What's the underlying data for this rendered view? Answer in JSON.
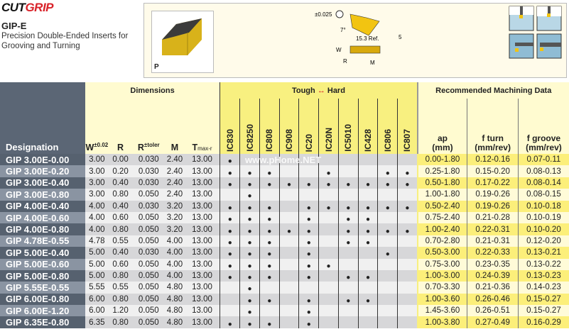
{
  "brand": {
    "logo_part1": "CUT",
    "logo_part2": "GRIP"
  },
  "product": {
    "title": "GIP-E",
    "subtitle": "Precision Double-Ended Inserts for Grooving and Turning",
    "photo_label": "P"
  },
  "diagram": {
    "tolerance": "±0.025",
    "angle": "7°",
    "ref_length": "15.3 Ref.",
    "height": "5",
    "w_label": "W",
    "r_label": "R",
    "m_label": "M"
  },
  "watermark": "www.pHome.NET",
  "table": {
    "designation_header": "Designation",
    "dimensions_header": "Dimensions",
    "dim_cols": [
      {
        "main": "W",
        "sup": "±0.02"
      },
      {
        "main": "R",
        "sup": ""
      },
      {
        "main": "R",
        "sup": "±toler"
      },
      {
        "main": "M",
        "sup": ""
      },
      {
        "main": "T",
        "sub": "max-r"
      }
    ],
    "grades_header": {
      "left": "Tough",
      "arrow": "↔",
      "right": "Hard",
      "arrow_color": "#d9232a"
    },
    "grades": [
      "IC830",
      "IC8250",
      "IC808",
      "IC908",
      "IC20",
      "IC20N",
      "IC5010",
      "IC428",
      "IC806",
      "IC807"
    ],
    "machining_header": "Recommended  Machining Data",
    "mach_cols": [
      {
        "l1": "ap",
        "l2": "(mm)"
      },
      {
        "l1": "f turn",
        "l2": "(mm/rev)"
      },
      {
        "l1": "f groove",
        "l2": "(mm/rev)"
      }
    ],
    "rows": [
      {
        "d": "GIP 3.00E-0.00",
        "dims": [
          "3.00",
          "0.00",
          "0.030",
          "2.40",
          "13.00"
        ],
        "g": [
          "IC830"
        ],
        "m": [
          "0.00-1.80",
          "0.12-0.16",
          "0.07-0.11"
        ]
      },
      {
        "d": "GIP 3.00E-0.20",
        "dims": [
          "3.00",
          "0.20",
          "0.030",
          "2.40",
          "13.00"
        ],
        "g": [
          "IC830",
          "IC8250",
          "IC808",
          "IC20N",
          "IC806",
          "IC807"
        ],
        "m": [
          "0.25-1.80",
          "0.15-0.20",
          "0.08-0.13"
        ]
      },
      {
        "d": "GIP 3.00E-0.40",
        "dims": [
          "3.00",
          "0.40",
          "0.030",
          "2.40",
          "13.00"
        ],
        "g": [
          "IC830",
          "IC8250",
          "IC808",
          "IC908",
          "IC20",
          "IC20N",
          "IC5010",
          "IC428",
          "IC806",
          "IC807"
        ],
        "m": [
          "0.50-1.80",
          "0.17-0.22",
          "0.08-0.14"
        ]
      },
      {
        "d": "GIP 3.00E-0.80",
        "dims": [
          "3.00",
          "0.80",
          "0.050",
          "2.40",
          "13.00"
        ],
        "g": [
          "IC8250"
        ],
        "m": [
          "1.00-1.80",
          "0.19-0.26",
          "0.08-0.15"
        ]
      },
      {
        "d": "GIP 4.00E-0.40",
        "dims": [
          "4.00",
          "0.40",
          "0.030",
          "3.20",
          "13.00"
        ],
        "g": [
          "IC830",
          "IC8250",
          "IC808",
          "IC20",
          "IC20N",
          "IC5010",
          "IC428",
          "IC806",
          "IC807"
        ],
        "m": [
          "0.50-2.40",
          "0.19-0.26",
          "0.10-0.18"
        ]
      },
      {
        "d": "GIP 4.00E-0.60",
        "dims": [
          "4.00",
          "0.60",
          "0.050",
          "3.20",
          "13.00"
        ],
        "g": [
          "IC830",
          "IC8250",
          "IC808",
          "IC20",
          "IC5010",
          "IC428"
        ],
        "m": [
          "0.75-2.40",
          "0.21-0.28",
          "0.10-0.19"
        ]
      },
      {
        "d": "GIP 4.00E-0.80",
        "dims": [
          "4.00",
          "0.80",
          "0.050",
          "3.20",
          "13.00"
        ],
        "g": [
          "IC830",
          "IC8250",
          "IC808",
          "IC908",
          "IC20",
          "IC5010",
          "IC428",
          "IC806",
          "IC807"
        ],
        "m": [
          "1.00-2.40",
          "0.22-0.31",
          "0.10-0.20"
        ]
      },
      {
        "d": "GIP 4.78E-0.55",
        "dims": [
          "4.78",
          "0.55",
          "0.050",
          "4.00",
          "13.00"
        ],
        "g": [
          "IC830",
          "IC8250",
          "IC808",
          "IC20",
          "IC5010",
          "IC428"
        ],
        "m": [
          "0.70-2.80",
          "0.21-0.31",
          "0.12-0.20"
        ]
      },
      {
        "d": "GIP 5.00E-0.40",
        "dims": [
          "5.00",
          "0.40",
          "0.030",
          "4.00",
          "13.00"
        ],
        "g": [
          "IC830",
          "IC8250",
          "IC808",
          "IC20",
          "IC806"
        ],
        "m": [
          "0.50-3.00",
          "0.22-0.33",
          "0.13-0.21"
        ]
      },
      {
        "d": "GIP 5.00E-0.60",
        "dims": [
          "5.00",
          "0.60",
          "0.050",
          "4.00",
          "13.00"
        ],
        "g": [
          "IC830",
          "IC8250",
          "IC808",
          "IC20",
          "IC20N"
        ],
        "m": [
          "0.75-3.00",
          "0.23-0.35",
          "0.13-0.22"
        ]
      },
      {
        "d": "GIP 5.00E-0.80",
        "dims": [
          "5.00",
          "0.80",
          "0.050",
          "4.00",
          "13.00"
        ],
        "g": [
          "IC830",
          "IC8250",
          "IC808",
          "IC20",
          "IC5010",
          "IC428"
        ],
        "m": [
          "1.00-3.00",
          "0.24-0.39",
          "0.13-0.23"
        ]
      },
      {
        "d": "GIP 5.55E-0.55",
        "dims": [
          "5.55",
          "0.55",
          "0.050",
          "4.80",
          "13.00"
        ],
        "g": [
          "IC8250"
        ],
        "m": [
          "0.70-3.30",
          "0.21-0.36",
          "0.14-0.23"
        ]
      },
      {
        "d": "GIP 6.00E-0.80",
        "dims": [
          "6.00",
          "0.80",
          "0.050",
          "4.80",
          "13.00"
        ],
        "g": [
          "IC8250",
          "IC808",
          "IC20",
          "IC5010",
          "IC428"
        ],
        "m": [
          "1.00-3.60",
          "0.26-0.46",
          "0.15-0.27"
        ]
      },
      {
        "d": "GIP 6.00E-1.20",
        "dims": [
          "6.00",
          "1.20",
          "0.050",
          "4.80",
          "13.00"
        ],
        "g": [
          "IC8250",
          "IC20"
        ],
        "m": [
          "1.45-3.60",
          "0.26-0.51",
          "0.15-0.27"
        ]
      },
      {
        "d": "GIP 6.35E-0.80",
        "dims": [
          "6.35",
          "0.80",
          "0.050",
          "4.80",
          "13.00"
        ],
        "g": [
          "IC830",
          "IC8250",
          "IC808",
          "IC20"
        ],
        "m": [
          "1.00-3.80",
          "0.27-0.49",
          "0.16-0.29"
        ]
      }
    ]
  }
}
